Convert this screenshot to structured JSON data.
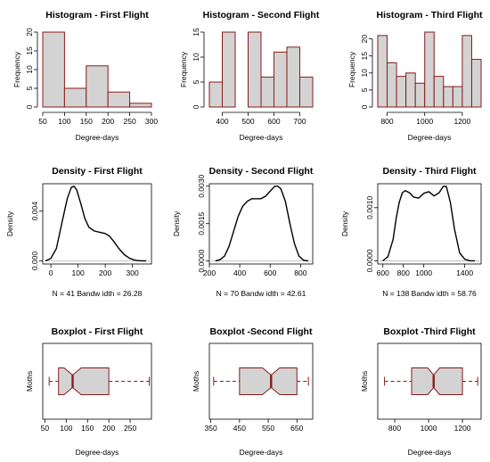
{
  "style": {
    "fill": "#d3d3d3",
    "stroke": "#8b1a1a",
    "line": "#000000",
    "dash": "#8b1a1a",
    "zero_line": "#b0b0b0"
  },
  "chart_data": [
    {
      "type": "bar",
      "title": "Histogram - First Flight",
      "xlabel": "Degree-days",
      "ylabel": "Frequency",
      "xlim": [
        50,
        300
      ],
      "ylim": [
        0,
        20
      ],
      "xticks": [
        50,
        100,
        150,
        200,
        250,
        300
      ],
      "yticks": [
        0,
        5,
        10,
        15,
        20
      ],
      "bins": [
        {
          "from": 50,
          "to": 100,
          "count": 20
        },
        {
          "from": 100,
          "to": 150,
          "count": 5
        },
        {
          "from": 150,
          "to": 200,
          "count": 11
        },
        {
          "from": 200,
          "to": 250,
          "count": 4
        },
        {
          "from": 250,
          "to": 300,
          "count": 1
        }
      ]
    },
    {
      "type": "bar",
      "title": "Histogram - Second Flight",
      "xlabel": "Degree-days",
      "ylabel": "Frequency",
      "xlim": [
        350,
        750
      ],
      "ylim": [
        0,
        15
      ],
      "xticks": [
        400,
        500,
        600,
        700
      ],
      "yticks": [
        0,
        5,
        10,
        15
      ],
      "bins": [
        {
          "from": 350,
          "to": 400,
          "count": 5
        },
        {
          "from": 400,
          "to": 450,
          "count": 15
        },
        {
          "from": 450,
          "to": 500,
          "count": 0
        },
        {
          "from": 500,
          "to": 550,
          "count": 15
        },
        {
          "from": 550,
          "to": 600,
          "count": 6
        },
        {
          "from": 600,
          "to": 650,
          "count": 11
        },
        {
          "from": 650,
          "to": 700,
          "count": 12
        },
        {
          "from": 700,
          "to": 750,
          "count": 6
        }
      ]
    },
    {
      "type": "bar",
      "title": "Histogram - Third Flight",
      "xlabel": "Degree-days",
      "ylabel": "Frequency",
      "xlim": [
        750,
        1300
      ],
      "ylim": [
        0,
        22
      ],
      "xticks": [
        800,
        1000,
        1200
      ],
      "yticks": [
        0,
        5,
        10,
        15,
        20
      ],
      "bins": [
        {
          "from": 750,
          "to": 800,
          "count": 21
        },
        {
          "from": 800,
          "to": 850,
          "count": 13
        },
        {
          "from": 850,
          "to": 900,
          "count": 9
        },
        {
          "from": 900,
          "to": 950,
          "count": 10
        },
        {
          "from": 950,
          "to": 1000,
          "count": 7
        },
        {
          "from": 1000,
          "to": 1050,
          "count": 22
        },
        {
          "from": 1050,
          "to": 1100,
          "count": 9
        },
        {
          "from": 1100,
          "to": 1150,
          "count": 6
        },
        {
          "from": 1150,
          "to": 1200,
          "count": 6
        },
        {
          "from": 1200,
          "to": 1250,
          "count": 21
        },
        {
          "from": 1250,
          "to": 1300,
          "count": 14
        }
      ]
    },
    {
      "type": "line",
      "title": "Density - First Flight",
      "ylabel": "Density",
      "note": "N = 41   Bandw idth = 26.28",
      "xlim": [
        -30,
        370
      ],
      "ylim": [
        -0.00025,
        0.0062
      ],
      "xticks": [
        0,
        100,
        200,
        300
      ],
      "yticks": [
        0.0,
        0.004
      ],
      "ytick_labels": [
        "0.000",
        "0.004"
      ],
      "x": [
        -20,
        0,
        20,
        40,
        60,
        75,
        85,
        95,
        110,
        125,
        140,
        160,
        180,
        200,
        215,
        230,
        250,
        270,
        290,
        310,
        330,
        350
      ],
      "y": [
        0.0,
        0.0002,
        0.001,
        0.003,
        0.005,
        0.0059,
        0.006,
        0.0057,
        0.0046,
        0.0034,
        0.0027,
        0.0024,
        0.0023,
        0.0022,
        0.002,
        0.0016,
        0.001,
        0.0005,
        0.0002,
        5e-05,
        1e-05,
        0.0
      ]
    },
    {
      "type": "line",
      "title": "Density - Second Flight",
      "ylabel": "Density",
      "note": "N = 70   Bandw idth = 42.61",
      "xlim": [
        200,
        880
      ],
      "ylim": [
        -0.00012,
        0.0031
      ],
      "xticks": [
        200,
        400,
        600,
        800
      ],
      "yticks": [
        0.0,
        0.0015,
        0.003
      ],
      "ytick_labels": [
        "0.0000",
        "0.0015",
        "0.0030"
      ],
      "x": [
        240,
        270,
        300,
        330,
        360,
        390,
        420,
        450,
        480,
        510,
        540,
        570,
        600,
        630,
        650,
        670,
        700,
        730,
        760,
        790,
        820,
        850
      ],
      "y": [
        0.0,
        5e-05,
        0.0002,
        0.0006,
        0.0012,
        0.0018,
        0.0022,
        0.0024,
        0.0025,
        0.0025,
        0.0025,
        0.0026,
        0.0028,
        0.003,
        0.003,
        0.0029,
        0.0024,
        0.0015,
        0.0007,
        0.0002,
        3e-05,
        0.0
      ]
    },
    {
      "type": "line",
      "title": "Density - Third Flight",
      "ylabel": "Density",
      "note": "N = 138   Bandw idth = 58.76",
      "xlim": [
        550,
        1560
      ],
      "ylim": [
        -6e-05,
        0.00145
      ],
      "xticks": [
        600,
        800,
        1000,
        1400
      ],
      "yticks": [
        0.0,
        0.001
      ],
      "ytick_labels": [
        "0.0000",
        "0.0010"
      ],
      "x": [
        600,
        650,
        700,
        730,
        760,
        790,
        820,
        860,
        900,
        950,
        1000,
        1050,
        1100,
        1150,
        1190,
        1220,
        1260,
        1300,
        1350,
        1400,
        1450,
        1500
      ],
      "y": [
        0.0,
        8e-05,
        0.0004,
        0.0008,
        0.0011,
        0.00128,
        0.00132,
        0.00128,
        0.0012,
        0.00118,
        0.00127,
        0.0013,
        0.00122,
        0.00128,
        0.0014,
        0.0014,
        0.0011,
        0.0006,
        0.00015,
        3e-05,
        0.0,
        0.0
      ]
    },
    {
      "type": "boxplot",
      "title": "Boxplot - First Flight",
      "xlabel": "Degree-days",
      "ylabel": "Moths",
      "xlim": [
        45,
        300
      ],
      "xticks": [
        50,
        100,
        150,
        200,
        250
      ],
      "min": 60,
      "q1": 82,
      "median": 115,
      "q3": 200,
      "max": 295,
      "notch": [
        95,
        135
      ]
    },
    {
      "type": "boxplot",
      "title": "Boxplot -Second Flight",
      "xlabel": "Degree-days",
      "ylabel": "Moths",
      "xlim": [
        345,
        705
      ],
      "xticks": [
        350,
        450,
        550,
        650
      ],
      "min": 360,
      "q1": 450,
      "median": 560,
      "q3": 650,
      "max": 690,
      "notch": [
        530,
        590
      ]
    },
    {
      "type": "boxplot",
      "title": "Boxplot -Third Flight",
      "xlabel": "Degree-days",
      "ylabel": "Moths",
      "xlim": [
        700,
        1310
      ],
      "xticks": [
        800,
        1000,
        1200
      ],
      "min": 740,
      "q1": 900,
      "median": 1030,
      "q3": 1200,
      "max": 1290,
      "notch": [
        995,
        1065
      ]
    }
  ]
}
